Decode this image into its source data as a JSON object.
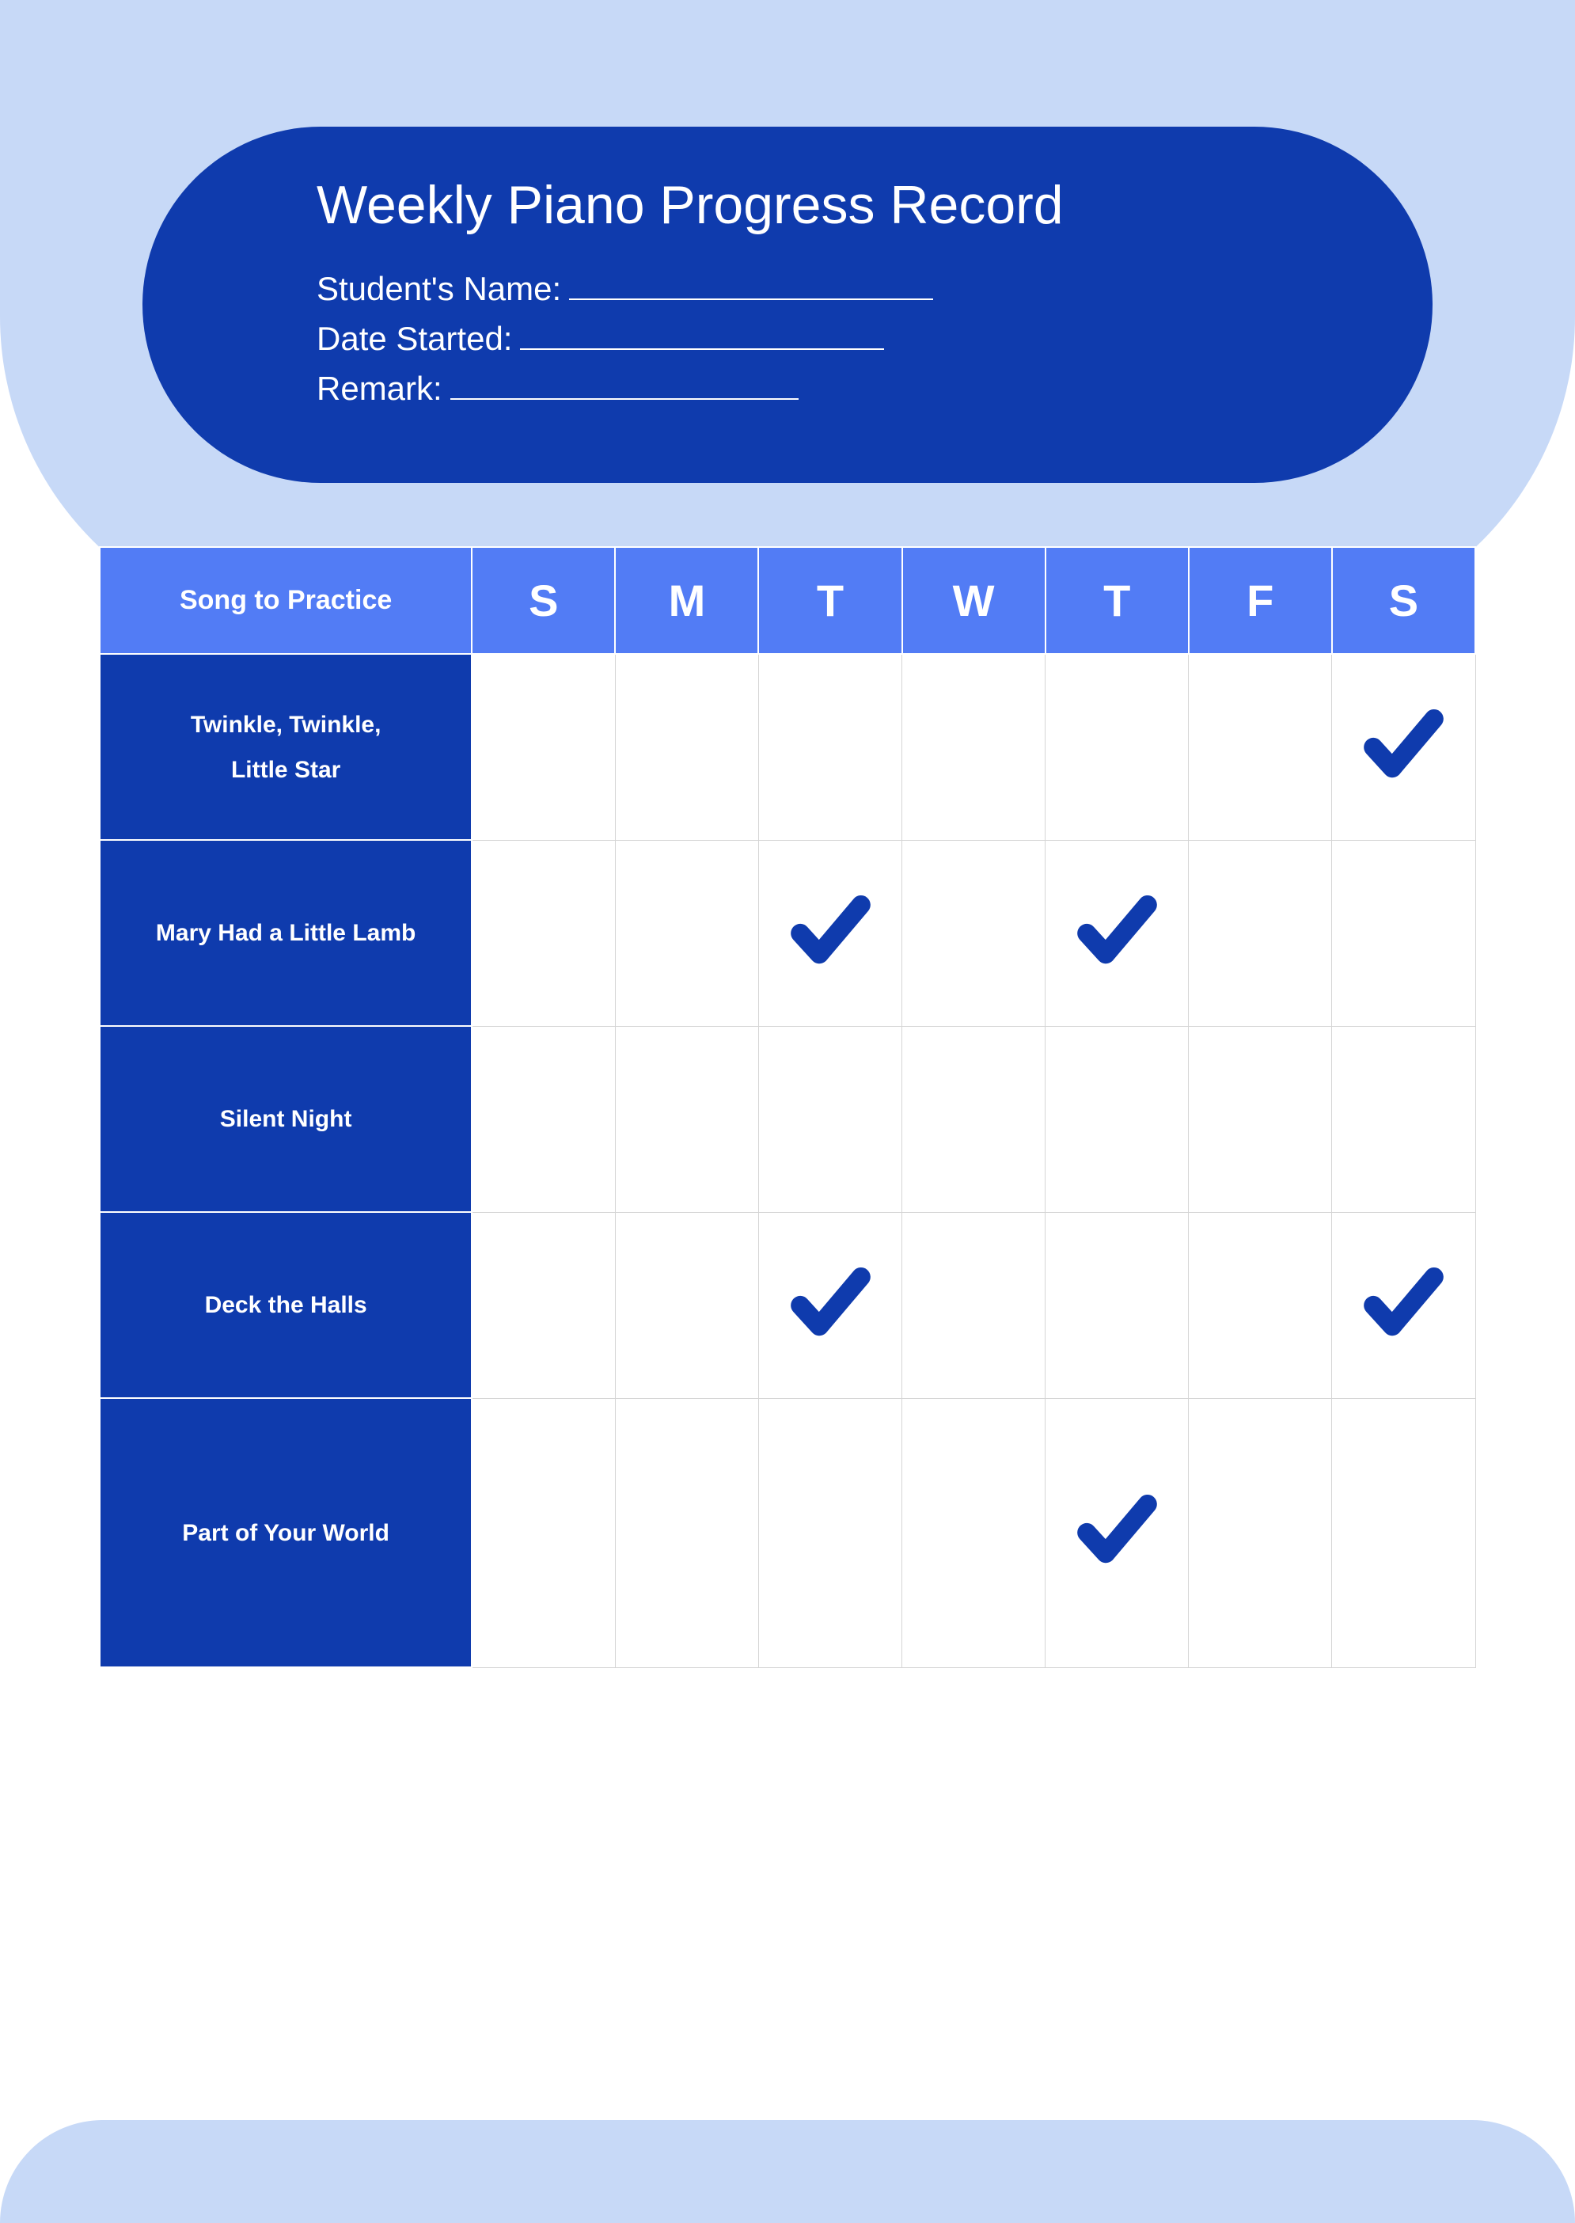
{
  "header": {
    "title": "Weekly Piano Progress Record",
    "fields": [
      {
        "label": "Student's Name:",
        "underline_width": 460
      },
      {
        "label": "Date Started:",
        "underline_width": 460
      },
      {
        "label": "Remark:",
        "underline_width": 440
      }
    ]
  },
  "table": {
    "song_header": "Song to Practice",
    "days": [
      "S",
      "M",
      "T",
      "W",
      "T",
      "F",
      "S"
    ],
    "rows": [
      {
        "song": "Twinkle, Twinkle,\nLittle Star",
        "checks": [
          false,
          false,
          false,
          false,
          false,
          false,
          true
        ],
        "tall": false
      },
      {
        "song": "Mary Had a Little Lamb",
        "checks": [
          false,
          false,
          true,
          false,
          true,
          false,
          false
        ],
        "tall": false
      },
      {
        "song": "Silent Night",
        "checks": [
          false,
          false,
          false,
          false,
          false,
          false,
          false
        ],
        "tall": false
      },
      {
        "song": "Deck the Halls",
        "checks": [
          false,
          false,
          true,
          false,
          false,
          false,
          true
        ],
        "tall": false
      },
      {
        "song": "Part of Your World",
        "checks": [
          false,
          false,
          false,
          false,
          true,
          false,
          false
        ],
        "tall": true
      }
    ]
  },
  "colors": {
    "page_bg": "#c7d9f7",
    "header_pill": "#0f3bad",
    "table_header": "#527cf5",
    "song_cell": "#0f3bad",
    "check_color": "#0f3bad",
    "cell_border": "#d5d5d5"
  }
}
